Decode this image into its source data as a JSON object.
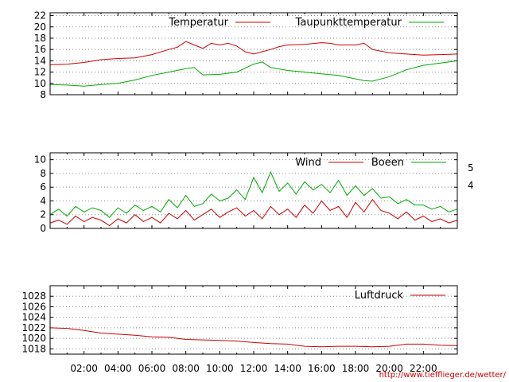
{
  "credit": "http://www.tiefflieger.de/wetter/",
  "x_tick_labels": [
    "02:00",
    "04:00",
    "06:00",
    "08:00",
    "10:00",
    "12:00",
    "14:00",
    "16:00",
    "18:00",
    "20:00",
    "22:00"
  ],
  "colors": {
    "red": "#cc0000",
    "green": "#00aa00",
    "grid": "#8c8c8c"
  },
  "chart_data": [
    {
      "type": "line",
      "title": "",
      "xlabel": "",
      "ylabel": "",
      "xlim": [
        0,
        24
      ],
      "ylim": [
        8,
        22.5
      ],
      "yticks": [
        "8",
        "10",
        "12",
        "14",
        "16",
        "18",
        "20",
        "22"
      ],
      "grid": true,
      "legend": "top-right",
      "series": [
        {
          "name": "Temperatur",
          "color": "#cc0000",
          "x": [
            0,
            1,
            2,
            3,
            4,
            5,
            6,
            7,
            7.5,
            8,
            8.5,
            9,
            9.5,
            10,
            10.5,
            11,
            11.5,
            12,
            12.5,
            13,
            13.5,
            14,
            15,
            16,
            16.5,
            17,
            18,
            18.5,
            19,
            20,
            21,
            22,
            23,
            24
          ],
          "y": [
            13.3,
            13.4,
            13.7,
            14.2,
            14.4,
            14.5,
            15.1,
            16.0,
            16.4,
            17.4,
            16.8,
            16.2,
            17.1,
            16.8,
            17.1,
            16.6,
            15.6,
            15.2,
            15.6,
            16.0,
            16.5,
            16.8,
            16.9,
            17.2,
            17.1,
            16.8,
            16.8,
            17.1,
            16.0,
            15.4,
            15.2,
            15.0,
            15.1,
            15.2
          ]
        },
        {
          "name": "Taupunkttemperatur",
          "color": "#00aa00",
          "x": [
            0,
            1,
            2,
            3,
            4,
            5,
            6,
            7,
            8,
            8.5,
            9,
            10,
            11,
            12,
            12.5,
            13,
            14,
            15,
            16,
            17,
            18,
            18.5,
            19,
            20,
            21,
            22,
            23,
            24
          ],
          "y": [
            9.8,
            9.7,
            9.5,
            9.8,
            10.0,
            10.6,
            11.4,
            12.0,
            12.6,
            12.8,
            11.5,
            11.6,
            12.0,
            13.4,
            13.8,
            12.8,
            12.3,
            12.0,
            11.7,
            11.4,
            10.8,
            10.5,
            10.4,
            11.2,
            12.4,
            13.2,
            13.6,
            14.0
          ]
        }
      ]
    },
    {
      "type": "line",
      "title": "",
      "xlabel": "",
      "ylabel": "",
      "xlim": [
        0,
        24
      ],
      "ylim": [
        0,
        11
      ],
      "yticks": [
        "0",
        "2",
        "4",
        "6",
        "8",
        "10"
      ],
      "grid": true,
      "legend": "top-right",
      "side_labels": [
        "5",
        "4"
      ],
      "series": [
        {
          "name": "Wind",
          "color": "#cc0000",
          "x": [
            0,
            0.5,
            1,
            1.5,
            2,
            2.5,
            3,
            3.5,
            4,
            4.5,
            5,
            5.5,
            6,
            6.5,
            7,
            7.5,
            8,
            8.5,
            9,
            9.5,
            10,
            10.5,
            11,
            11.5,
            12,
            12.5,
            13,
            13.5,
            14,
            14.5,
            15,
            15.5,
            16,
            16.5,
            17,
            17.5,
            18,
            18.5,
            19,
            19.5,
            20,
            20.5,
            21,
            21.5,
            22,
            22.5,
            23,
            23.5,
            24
          ],
          "y": [
            0.8,
            1.2,
            0.6,
            1.8,
            1.0,
            1.6,
            1.2,
            0.4,
            1.4,
            0.8,
            2.0,
            1.0,
            1.6,
            0.8,
            2.2,
            1.4,
            2.6,
            1.2,
            2.0,
            2.8,
            1.6,
            2.4,
            3.0,
            1.8,
            2.6,
            1.4,
            3.2,
            2.0,
            2.8,
            1.6,
            3.4,
            2.2,
            4.0,
            2.6,
            3.2,
            1.6,
            3.8,
            2.4,
            4.2,
            2.6,
            2.2,
            1.4,
            2.4,
            1.2,
            1.8,
            1.0,
            1.4,
            0.8,
            1.2
          ]
        },
        {
          "name": "Boeen",
          "color": "#00aa00",
          "x": [
            0,
            0.5,
            1,
            1.5,
            2,
            2.5,
            3,
            3.5,
            4,
            4.5,
            5,
            5.5,
            6,
            6.5,
            7,
            7.5,
            8,
            8.5,
            9,
            9.5,
            10,
            10.5,
            11,
            11.5,
            12,
            12.5,
            13,
            13.5,
            14,
            14.5,
            15,
            15.5,
            16,
            16.5,
            17,
            17.5,
            18,
            18.5,
            19,
            19.5,
            20,
            20.5,
            21,
            21.5,
            22,
            22.5,
            23,
            23.5,
            24
          ],
          "y": [
            2.0,
            2.8,
            1.8,
            3.2,
            2.4,
            3.0,
            2.6,
            1.6,
            3.0,
            2.2,
            3.4,
            2.6,
            3.2,
            2.4,
            4.2,
            3.0,
            4.8,
            3.2,
            3.6,
            5.0,
            4.0,
            4.4,
            5.6,
            4.2,
            7.4,
            5.2,
            8.2,
            5.4,
            6.6,
            5.0,
            6.8,
            5.6,
            6.4,
            5.2,
            7.0,
            4.8,
            6.2,
            4.8,
            5.8,
            4.4,
            4.6,
            3.6,
            4.2,
            3.4,
            3.4,
            2.8,
            3.2,
            2.4,
            2.8
          ]
        }
      ]
    },
    {
      "type": "line",
      "title": "",
      "xlabel": "",
      "ylabel": "",
      "xlim": [
        0,
        24
      ],
      "ylim": [
        1017,
        1030
      ],
      "yticks": [
        "1018",
        "1020",
        "1022",
        "1024",
        "1026",
        "1028"
      ],
      "grid": true,
      "legend": "top-right",
      "series": [
        {
          "name": "Luftdruck",
          "color": "#cc0000",
          "x": [
            0,
            1,
            2,
            3,
            4,
            5,
            6,
            7,
            8,
            9,
            10,
            11,
            12,
            13,
            14,
            15,
            16,
            17,
            18,
            19,
            20,
            21,
            22,
            23,
            24
          ],
          "y": [
            1022.0,
            1021.9,
            1021.5,
            1021.0,
            1020.8,
            1020.6,
            1020.3,
            1020.2,
            1019.8,
            1019.7,
            1019.6,
            1019.5,
            1019.2,
            1019.0,
            1018.9,
            1018.5,
            1018.4,
            1018.5,
            1018.5,
            1018.4,
            1018.5,
            1018.9,
            1018.9,
            1018.7,
            1018.6
          ]
        }
      ]
    }
  ]
}
